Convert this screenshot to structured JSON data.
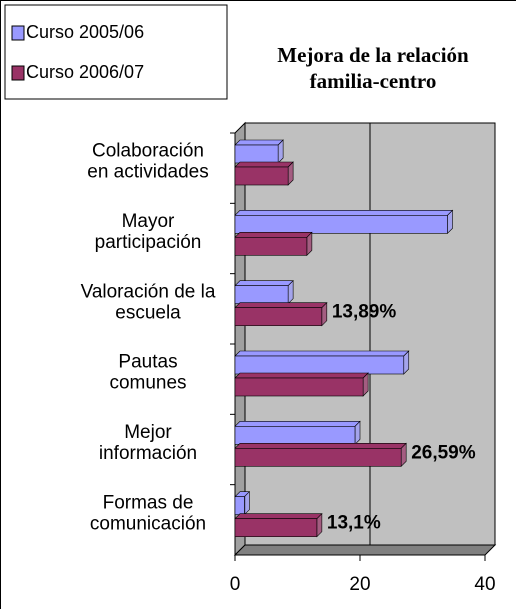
{
  "chart_data": {
    "type": "bar",
    "orientation": "horizontal",
    "title": "Mejora de la relación\nfamilia-centro",
    "categories": [
      "Colaboración\nen actividades",
      "Mayor\nparticipación",
      "Valoración de la\nescuela",
      "Pautas\ncomunes",
      "Mejor\ninformación",
      "Formas de\ncomunicación"
    ],
    "series": [
      {
        "name": "Curso 2005/06",
        "color": "#9999ff",
        "values": [
          6.9,
          34,
          8.5,
          27,
          19.2,
          1.5
        ]
      },
      {
        "name": "Curso 2006/07",
        "color": "#993366",
        "values": [
          8.5,
          11.5,
          13.89,
          20.5,
          26.59,
          13.1
        ],
        "value_labels": [
          null,
          null,
          "13,89%",
          null,
          "26,59%",
          "13,1%"
        ]
      }
    ],
    "xlim": [
      0,
      40
    ],
    "xticks": [
      0,
      20,
      40
    ],
    "grid": true,
    "legend": "top-left"
  }
}
